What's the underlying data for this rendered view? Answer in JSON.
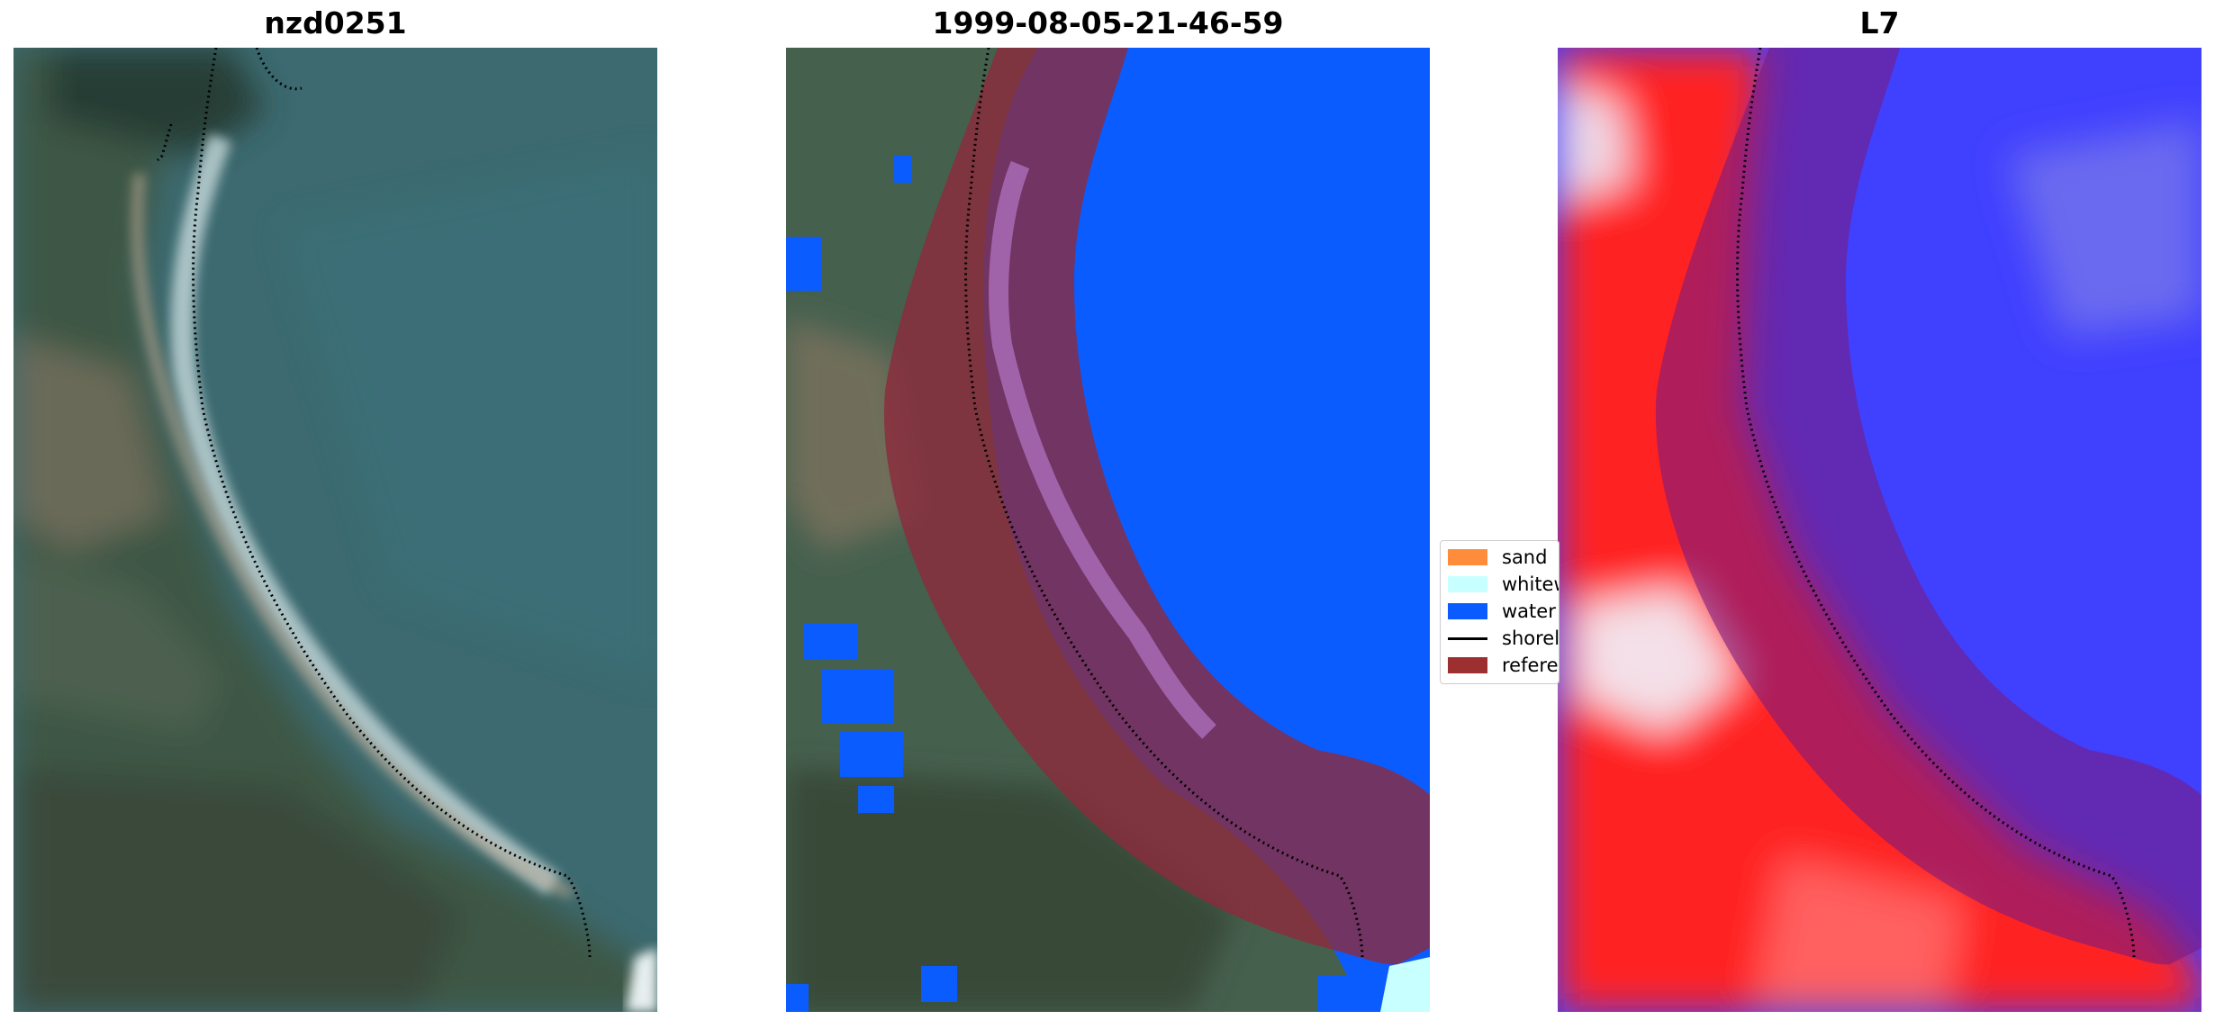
{
  "panels": [
    {
      "title": "nzd0251"
    },
    {
      "title": "1999-08-05-21-46-59"
    },
    {
      "title": "L7"
    }
  ],
  "legend": {
    "items": [
      {
        "label": "sand",
        "kind": "patch",
        "color": "#ff8c3a"
      },
      {
        "label": "whitewater",
        "kind": "patch",
        "color": "#c8ffff"
      },
      {
        "label": "water",
        "kind": "patch",
        "color": "#0a5cff"
      },
      {
        "label": "shoreline",
        "kind": "line",
        "color": "#000000"
      },
      {
        "label": "reference shoreline buffer",
        "kind": "patch",
        "color": "#9c3030"
      }
    ]
  },
  "colors": {
    "water_class": "#0a5cff",
    "buffer": "#8c2a3c",
    "rgb_sea": "#3e6a72",
    "rgb_land": "#3f5a48",
    "index_pos": "#ff2020",
    "index_neg": "#2a2aff"
  }
}
